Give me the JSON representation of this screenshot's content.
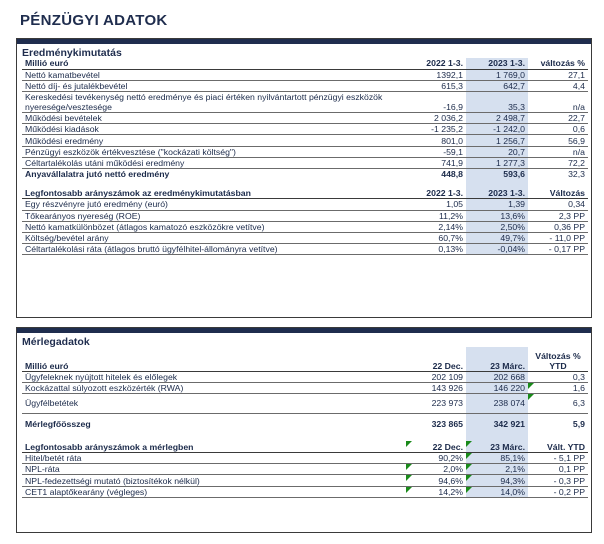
{
  "title": "PÉNZÜGYI ADATOK",
  "income": {
    "section_title": "Eredménykimutatás",
    "unit": "Millió euró",
    "col1": "2022 1-3.",
    "col2": "2023 1-3.",
    "col3": "változás %",
    "rows": [
      {
        "label": "Nettó kamatbevétel",
        "a": "1392,1",
        "b": "1 769,0",
        "c": "27,1"
      },
      {
        "label": "Nettó díj- és jutalékbevétel",
        "a": "615,3",
        "b": "642,7",
        "c": "4,4"
      },
      {
        "label": "Kereskedési tevékenység nettó eredménye és piaci értéken nyilvántartott pénzügyi eszközök nyeresége/vesztesége",
        "a": "-16,9",
        "b": "35,3",
        "c": "n/a"
      },
      {
        "label": "Működési bevételek",
        "a": "2 036,2",
        "b": "2 498,7",
        "c": "22,7"
      },
      {
        "label": "Működési kiadások",
        "a": "-1 235,2",
        "b": "-1 242,0",
        "c": "0,6"
      },
      {
        "label": "Működési eredmény",
        "a": "801,0",
        "b": "1 256,7",
        "c": "56,9"
      },
      {
        "label": "Pénzügyi eszközök értékvesztése (\"kockázati költség\")",
        "a": "-59,1",
        "b": "20,7",
        "c": "n/a"
      },
      {
        "label": "Céltartalékolás utáni működési eredmény",
        "a": "741,9",
        "b": "1 277,3",
        "c": "72,2"
      },
      {
        "label": "Anyavállalatra jutó nettó eredmény",
        "a": "448,8",
        "b": "593,6",
        "c": "32,3"
      }
    ]
  },
  "ratios1": {
    "header": "Legfontosabb arányszámok az eredménykimutatásban",
    "col1": "2022 1-3.",
    "col2": "2023 1-3.",
    "col3": "Változás",
    "rows": [
      {
        "label": "Egy részvényre jutó eredmény (euró)",
        "a": "1,05",
        "b": "1,39",
        "c": "0,34"
      },
      {
        "label": "Tőkearányos nyereség (ROE)",
        "a": "11,2%",
        "b": "13,6%",
        "c": "2,3 PP"
      },
      {
        "label": "Nettó kamatkülönbözet (átlagos kamatozó eszközökre vetítve)",
        "a": "2,14%",
        "b": "2,50%",
        "c": "0,36 PP"
      },
      {
        "label": "Költség/bevétel arány",
        "a": "60,7%",
        "b": "49,7%",
        "c": "- 11,0 PP"
      },
      {
        "label": "Céltartalékolási ráta (átlagos bruttó ügyfélhitel-állományra vetítve)",
        "a": "0,13%",
        "b": "-0,04%",
        "c": "- 0,17 PP"
      }
    ]
  },
  "balance": {
    "section_title": "Mérlegadatok",
    "unit": "Millió euró",
    "col1": "22 Dec.",
    "col2": "23 Márc.",
    "col3a": "Változás %",
    "col3b": "YTD",
    "rows": [
      {
        "label": "Ügyfeleknek nyújtott hitelek és előlegek",
        "a": "202 109",
        "b": "202 668",
        "c": "0,3"
      },
      {
        "label": "Kockázattal súlyozott eszközérték (RWA)",
        "a": "143 926",
        "b": "146 220",
        "c": "1,6"
      },
      {
        "label": "Ügyfélbetétek",
        "a": "223 973",
        "b": "238 074",
        "c": "6,3"
      },
      {
        "label": "Mérlegfőösszeg",
        "a": "323 865",
        "b": "342 921",
        "c": "5,9"
      }
    ]
  },
  "ratios2": {
    "header": "Legfontosabb arányszámok a mérlegben",
    "col1": "22 Dec.",
    "col2": "23 Márc.",
    "col3": "Vált. YTD",
    "rows": [
      {
        "label": "Hitel/betét ráta",
        "a": "90,2%",
        "b": "85,1%",
        "c": "- 5,1 PP"
      },
      {
        "label": "NPL-ráta",
        "a": "2,0%",
        "b": "2,1%",
        "c": "0,1 PP"
      },
      {
        "label": "NPL-fedezettségi mutató (biztosítékok nélkül)",
        "a": "94,6%",
        "b": "94,3%",
        "c": "- 0,3 PP"
      },
      {
        "label": "CET1 alaptőkearány (végleges)",
        "a": "14,2%",
        "b": "14,0%",
        "c": "- 0,2 PP"
      }
    ]
  }
}
